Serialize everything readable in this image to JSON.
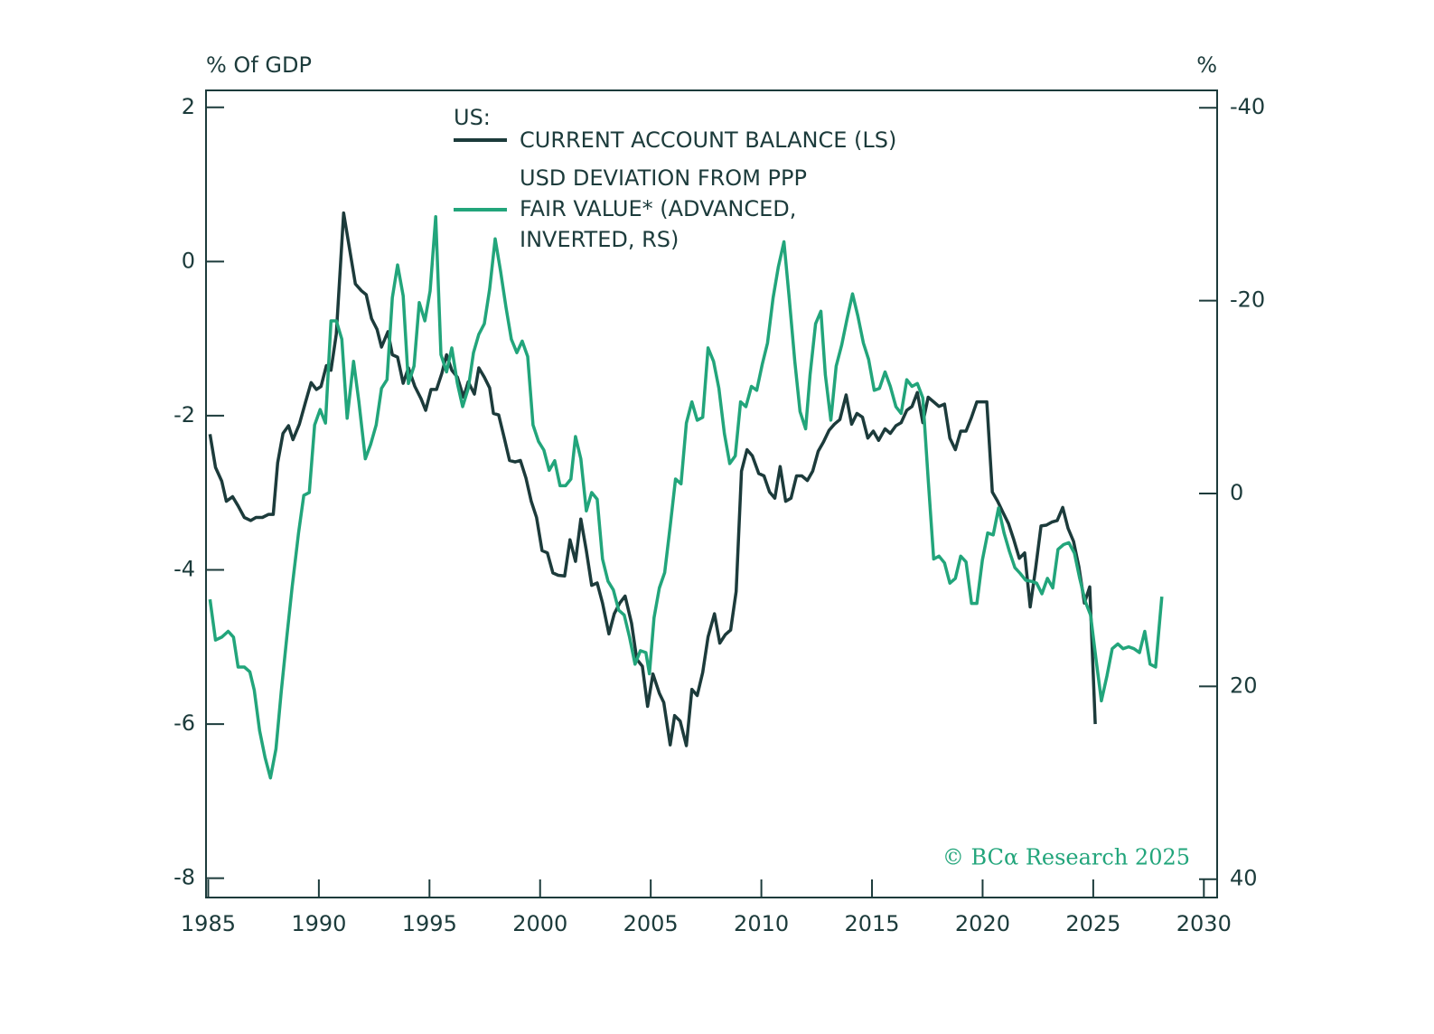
{
  "chart_data": {
    "type": "line",
    "y_label": "% Of GDP",
    "y2_label": "%",
    "legend_title": "US:",
    "source": "© BCα Research 2025",
    "xlim": [
      1984.9,
      2030.6
    ],
    "xticks": [
      1985,
      1990,
      1995,
      2000,
      2005,
      2010,
      2015,
      2020,
      2025,
      2030
    ],
    "ylim": [
      -8.25,
      2.22
    ],
    "yticks": [
      2,
      0,
      -2,
      -4,
      -6,
      -8
    ],
    "y2lim": [
      41.9,
      -41.8
    ],
    "y2ticks": [
      -40,
      -20,
      0,
      20,
      40
    ],
    "grid": false,
    "series": [
      {
        "name": "CURRENT ACCOUNT BALANCE (LS)",
        "color": "#1c3b3b",
        "axis": "y",
        "x": [
          1985.08,
          1985.33,
          1985.61,
          1985.82,
          1986.1,
          1986.35,
          1986.63,
          1986.92,
          1987.16,
          1987.45,
          1987.73,
          1987.94,
          1988.14,
          1988.38,
          1988.63,
          1988.83,
          1989.12,
          1989.4,
          1989.65,
          1989.89,
          1990.1,
          1990.34,
          1990.55,
          1990.79,
          1991.12,
          1991.36,
          1991.65,
          1991.93,
          1992.14,
          1992.38,
          1992.63,
          1992.83,
          1993.12,
          1993.32,
          1993.56,
          1993.81,
          1994.05,
          1994.34,
          1994.62,
          1994.83,
          1995.07,
          1995.32,
          1995.56,
          1995.77,
          1996.01,
          1996.26,
          1996.54,
          1996.75,
          1997.03,
          1997.23,
          1997.48,
          1997.72,
          1997.89,
          1998.13,
          1998.38,
          1998.62,
          1998.87,
          1999.11,
          1999.36,
          1999.6,
          1999.84,
          2000.09,
          2000.33,
          2000.58,
          2000.82,
          2001.11,
          2001.35,
          2001.6,
          2001.84,
          2002.09,
          2002.33,
          2002.58,
          2002.82,
          2003.11,
          2003.35,
          2003.6,
          2003.84,
          2004.13,
          2004.37,
          2004.62,
          2004.86,
          2005.1,
          2005.39,
          2005.59,
          2005.88,
          2006.08,
          2006.33,
          2006.61,
          2006.86,
          2007.1,
          2007.35,
          2007.59,
          2007.88,
          2008.12,
          2008.37,
          2008.61,
          2008.86,
          2009.1,
          2009.35,
          2009.59,
          2009.88,
          2010.12,
          2010.37,
          2010.61,
          2010.85,
          2011.1,
          2011.34,
          2011.59,
          2011.83,
          2012.08,
          2012.32,
          2012.57,
          2012.81,
          2013.06,
          2013.3,
          2013.55,
          2013.83,
          2014.08,
          2014.32,
          2014.57,
          2014.81,
          2015.06,
          2015.3,
          2015.59,
          2015.83,
          2016.08,
          2016.32,
          2016.57,
          2016.81,
          2017.05,
          2017.3,
          2017.54,
          2017.79,
          2018.03,
          2018.28,
          2018.52,
          2018.77,
          2019.01,
          2019.25,
          2019.5,
          2019.74,
          2019.99,
          2020.19,
          2020.44,
          2020.68,
          2020.93,
          2021.17,
          2021.41,
          2021.66,
          2021.9,
          2022.15,
          2022.39,
          2022.64,
          2022.88,
          2023.13,
          2023.37,
          2023.62,
          2023.86,
          2024.11,
          2024.35,
          2024.6,
          2024.84,
          2025.09
        ],
        "values": [
          -2.24,
          -2.67,
          -2.85,
          -3.11,
          -3.05,
          -3.17,
          -3.32,
          -3.36,
          -3.32,
          -3.32,
          -3.28,
          -3.28,
          -2.61,
          -2.23,
          -2.13,
          -2.31,
          -2.11,
          -1.82,
          -1.57,
          -1.66,
          -1.62,
          -1.35,
          -1.41,
          -0.94,
          0.63,
          0.21,
          -0.29,
          -0.38,
          -0.43,
          -0.74,
          -0.88,
          -1.11,
          -0.91,
          -1.21,
          -1.24,
          -1.58,
          -1.38,
          -1.62,
          -1.78,
          -1.93,
          -1.66,
          -1.66,
          -1.45,
          -1.21,
          -1.41,
          -1.5,
          -1.76,
          -1.56,
          -1.72,
          -1.38,
          -1.5,
          -1.64,
          -1.97,
          -1.99,
          -2.29,
          -2.58,
          -2.6,
          -2.58,
          -2.81,
          -3.11,
          -3.32,
          -3.75,
          -3.78,
          -4.04,
          -4.07,
          -4.08,
          -3.61,
          -3.89,
          -3.34,
          -3.75,
          -4.2,
          -4.17,
          -4.43,
          -4.83,
          -4.57,
          -4.43,
          -4.34,
          -4.69,
          -5.16,
          -5.25,
          -5.77,
          -5.35,
          -5.6,
          -5.72,
          -6.27,
          -5.89,
          -5.96,
          -6.28,
          -5.55,
          -5.63,
          -5.33,
          -4.87,
          -4.57,
          -4.95,
          -4.84,
          -4.78,
          -4.28,
          -2.72,
          -2.44,
          -2.52,
          -2.75,
          -2.78,
          -2.99,
          -3.07,
          -2.66,
          -3.11,
          -3.07,
          -2.78,
          -2.78,
          -2.84,
          -2.72,
          -2.46,
          -2.34,
          -2.19,
          -2.11,
          -2.05,
          -1.73,
          -2.11,
          -1.97,
          -2.02,
          -2.29,
          -2.2,
          -2.32,
          -2.17,
          -2.23,
          -2.13,
          -2.09,
          -1.93,
          -1.88,
          -1.7,
          -2.09,
          -1.76,
          -1.82,
          -1.88,
          -1.85,
          -2.29,
          -2.44,
          -2.2,
          -2.2,
          -2.02,
          -1.82,
          -1.82,
          -1.82,
          -2.99,
          -3.11,
          -3.26,
          -3.4,
          -3.61,
          -3.85,
          -3.78,
          -4.48,
          -3.99,
          -3.43,
          -3.42,
          -3.38,
          -3.36,
          -3.19,
          -3.46,
          -3.63,
          -3.96,
          -4.43,
          -4.22,
          -6.0
        ]
      },
      {
        "name": "USD DEVIATION FROM PPP FAIR VALUE* (ADVANCED, INVERTED, RS)",
        "color": "#22a57b",
        "axis": "y2",
        "x": [
          1985.08,
          1985.33,
          1985.61,
          1985.9,
          1986.14,
          1986.35,
          1986.63,
          1986.88,
          1987.08,
          1987.32,
          1987.57,
          1987.81,
          1988.06,
          1988.3,
          1988.55,
          1988.79,
          1989.08,
          1989.32,
          1989.57,
          1989.81,
          1990.06,
          1990.3,
          1990.55,
          1990.79,
          1991.04,
          1991.28,
          1991.57,
          1991.81,
          1992.1,
          1992.34,
          1992.59,
          1992.83,
          1993.08,
          1993.32,
          1993.56,
          1993.81,
          1994.05,
          1994.3,
          1994.54,
          1994.79,
          1995.03,
          1995.28,
          1995.52,
          1995.77,
          1996.01,
          1996.26,
          1996.5,
          1996.75,
          1996.99,
          1997.23,
          1997.48,
          1997.72,
          1997.97,
          1998.21,
          1998.46,
          1998.7,
          1998.95,
          1999.19,
          1999.44,
          1999.68,
          1999.93,
          2000.17,
          2000.41,
          2000.66,
          2000.9,
          2001.15,
          2001.39,
          2001.6,
          2001.84,
          2002.09,
          2002.33,
          2002.58,
          2002.82,
          2003.07,
          2003.31,
          2003.55,
          2003.8,
          2004.04,
          2004.29,
          2004.53,
          2004.78,
          2004.94,
          2005.15,
          2005.39,
          2005.63,
          2005.88,
          2006.12,
          2006.37,
          2006.61,
          2006.86,
          2007.1,
          2007.35,
          2007.59,
          2007.84,
          2008.08,
          2008.33,
          2008.57,
          2008.82,
          2009.06,
          2009.3,
          2009.55,
          2009.79,
          2010.04,
          2010.28,
          2010.53,
          2010.77,
          2011.02,
          2011.26,
          2011.51,
          2011.75,
          2012.0,
          2012.2,
          2012.45,
          2012.69,
          2012.89,
          2013.14,
          2013.38,
          2013.63,
          2013.87,
          2014.12,
          2014.36,
          2014.61,
          2014.85,
          2015.1,
          2015.34,
          2015.59,
          2015.83,
          2016.08,
          2016.32,
          2016.57,
          2016.81,
          2017.05,
          2017.3,
          2017.54,
          2017.79,
          2018.03,
          2018.28,
          2018.52,
          2018.77,
          2019.01,
          2019.25,
          2019.5,
          2019.74,
          2019.99,
          2020.23,
          2020.48,
          2020.72,
          2020.97,
          2021.21,
          2021.46,
          2021.7,
          2021.95,
          2022.19,
          2022.44,
          2022.68,
          2022.93,
          2023.17,
          2023.41,
          2023.66,
          2023.9,
          2024.15,
          2024.39,
          2024.64,
          2024.88,
          2025.13,
          2025.37,
          2025.62,
          2025.86,
          2026.11,
          2026.35,
          2026.6,
          2026.84,
          2027.09,
          2027.33,
          2027.57,
          2027.82,
          2028.1
        ],
        "values": [
          10.98,
          15.2,
          14.9,
          14.3,
          14.9,
          18.0,
          18.0,
          18.5,
          20.4,
          24.6,
          27.4,
          29.5,
          26.5,
          20.5,
          14.9,
          9.8,
          4.1,
          0.2,
          -0.1,
          -7.1,
          -8.7,
          -7.3,
          -17.9,
          -17.9,
          -16.0,
          -7.8,
          -13.7,
          -9.5,
          -3.6,
          -5.1,
          -7.1,
          -10.9,
          -11.8,
          -20.3,
          -23.7,
          -20.5,
          -11.4,
          -13.2,
          -19.8,
          -17.9,
          -21.0,
          -28.7,
          -14.4,
          -12.6,
          -15.1,
          -11.4,
          -9.0,
          -10.9,
          -14.6,
          -16.5,
          -17.6,
          -21.2,
          -26.4,
          -23.1,
          -19.3,
          -16.0,
          -14.6,
          -15.8,
          -14.2,
          -7.1,
          -5.4,
          -4.5,
          -2.4,
          -3.4,
          -0.8,
          -0.8,
          -1.5,
          -5.9,
          -3.6,
          1.8,
          -0.1,
          0.6,
          6.8,
          9.1,
          10.0,
          12.1,
          12.6,
          14.9,
          17.7,
          16.3,
          16.5,
          18.7,
          12.9,
          9.8,
          8.2,
          3.4,
          -1.5,
          -1.0,
          -7.3,
          -9.5,
          -7.6,
          -7.9,
          -15.1,
          -13.7,
          -10.9,
          -6.2,
          -3.1,
          -3.9,
          -9.5,
          -9.0,
          -11.1,
          -10.7,
          -13.4,
          -15.6,
          -20.3,
          -23.5,
          -26.1,
          -20.3,
          -13.7,
          -8.5,
          -6.7,
          -12.3,
          -17.6,
          -18.9,
          -12.3,
          -7.6,
          -13.2,
          -15.4,
          -18.1,
          -20.7,
          -18.4,
          -15.6,
          -13.9,
          -10.7,
          -10.9,
          -12.6,
          -11.1,
          -9.0,
          -8.3,
          -11.8,
          -11.1,
          -11.4,
          -9.9,
          -1.5,
          6.8,
          6.5,
          7.2,
          9.3,
          8.8,
          6.5,
          7.1,
          11.4,
          11.4,
          6.9,
          4.1,
          4.3,
          1.5,
          4.1,
          6.0,
          7.7,
          8.3,
          9.0,
          9.1,
          9.3,
          10.4,
          8.8,
          9.8,
          5.8,
          5.3,
          5.1,
          6.2,
          8.8,
          11.2,
          12.6,
          17.3,
          21.5,
          18.9,
          16.1,
          15.6,
          16.1,
          15.9,
          16.1,
          16.5,
          14.3,
          17.7,
          18.0,
          10.7
        ]
      }
    ]
  }
}
